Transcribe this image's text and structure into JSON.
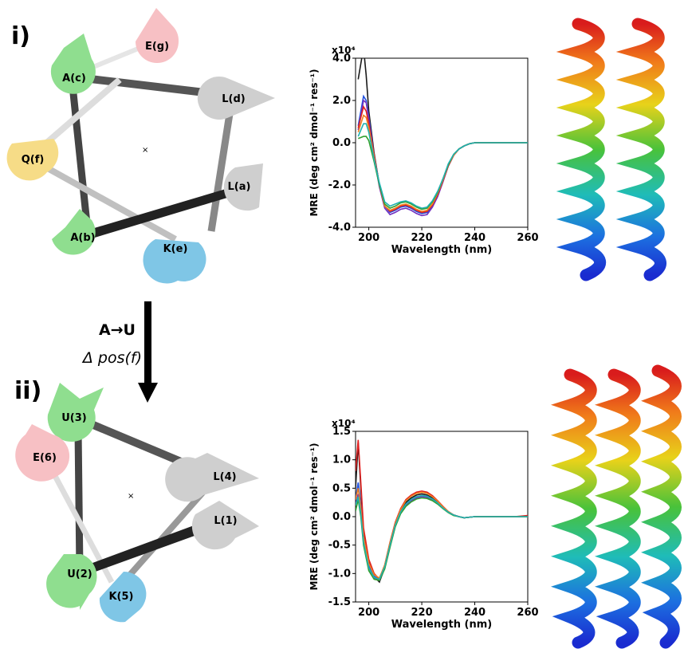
{
  "panels": {
    "i": {
      "label": "i)",
      "wheel": {
        "center_marker": "×",
        "residues": [
          {
            "id": "Ac",
            "label": "A(c)",
            "color": "#8fde8f"
          },
          {
            "id": "Eg",
            "label": "E(g)",
            "color": "#f7c0c4"
          },
          {
            "id": "Ld",
            "label": "L(d)",
            "color": "#cfcfcf"
          },
          {
            "id": "Qf",
            "label": "Q(f)",
            "color": "#f6dc87"
          },
          {
            "id": "La",
            "label": "L(a)",
            "color": "#cfcfcf"
          },
          {
            "id": "Ab",
            "label": "A(b)",
            "color": "#8fde8f"
          },
          {
            "id": "Ke",
            "label": "K(e)",
            "color": "#7fc6e6"
          }
        ]
      }
    },
    "ii": {
      "label": "ii)",
      "wheel": {
        "center_marker": "×",
        "residues": [
          {
            "id": "U3",
            "label": "U(3)",
            "color": "#8fde8f"
          },
          {
            "id": "E6",
            "label": "E(6)",
            "color": "#f7c0c4"
          },
          {
            "id": "L4",
            "label": "L(4)",
            "color": "#cfcfcf"
          },
          {
            "id": "L1",
            "label": "L(1)",
            "color": "#cfcfcf"
          },
          {
            "id": "U2",
            "label": "U(2)",
            "color": "#8fde8f"
          },
          {
            "id": "K5",
            "label": "K(5)",
            "color": "#7fc6e6"
          }
        ]
      }
    }
  },
  "transition": {
    "substitution": "A→U",
    "change": "Δ pos(f)"
  },
  "chart_data": [
    {
      "type": "line",
      "panel": "i",
      "xlabel": "Wavelength (nm)",
      "ylabel": "MRE (deg cm² dmol⁻¹ res⁻¹)",
      "multiplier": "x10⁴",
      "xlim": [
        195,
        260
      ],
      "ylim": [
        -4.0,
        4.0
      ],
      "xticks": [
        200,
        220,
        240,
        260
      ],
      "yticks": [
        {
          "v": 4.0,
          "t": "4.0"
        },
        {
          "v": 2.0,
          "t": "2.0"
        },
        {
          "v": 0.0,
          "t": "0.0"
        },
        {
          "v": -2.0,
          "t": "-2.0"
        },
        {
          "v": -4.0,
          "t": "-4.0"
        }
      ],
      "grid": false,
      "x": [
        196,
        198,
        199,
        200,
        202,
        204,
        206,
        208,
        210,
        212,
        214,
        216,
        218,
        220,
        222,
        224,
        226,
        228,
        230,
        232,
        234,
        236,
        238,
        240,
        245,
        250,
        255,
        260
      ],
      "series": [
        {
          "color": "#1a1a1a",
          "values": [
            3.0,
            4.5,
            3.2,
            1.5,
            -0.5,
            -2.0,
            -3.0,
            -3.25,
            -3.15,
            -3.0,
            -3.0,
            -3.1,
            -3.25,
            -3.35,
            -3.3,
            -3.0,
            -2.5,
            -1.8,
            -1.1,
            -0.6,
            -0.3,
            -0.15,
            -0.05,
            0.0,
            0.0,
            0.0,
            0.0,
            0.0
          ]
        },
        {
          "color": "#2050e0",
          "values": [
            0.8,
            2.2,
            2.0,
            1.2,
            -0.6,
            -2.0,
            -3.0,
            -3.3,
            -3.2,
            -3.05,
            -3.0,
            -3.1,
            -3.25,
            -3.35,
            -3.3,
            -3.0,
            -2.5,
            -1.8,
            -1.1,
            -0.6,
            -0.3,
            -0.15,
            -0.05,
            0.0,
            0.0,
            0.0,
            0.0,
            0.0
          ]
        },
        {
          "color": "#7030c0",
          "values": [
            0.6,
            2.0,
            1.9,
            1.1,
            -0.7,
            -2.1,
            -3.1,
            -3.4,
            -3.3,
            -3.15,
            -3.1,
            -3.2,
            -3.35,
            -3.45,
            -3.4,
            -3.05,
            -2.55,
            -1.85,
            -1.1,
            -0.6,
            -0.3,
            -0.15,
            -0.05,
            0.0,
            0.0,
            0.0,
            0.0,
            0.0
          ]
        },
        {
          "color": "#e02020",
          "values": [
            0.7,
            1.7,
            1.5,
            0.9,
            -0.6,
            -2.0,
            -3.0,
            -3.25,
            -3.15,
            -3.0,
            -2.95,
            -3.05,
            -3.2,
            -3.3,
            -3.25,
            -2.95,
            -2.45,
            -1.8,
            -1.1,
            -0.6,
            -0.3,
            -0.15,
            -0.05,
            0.0,
            0.0,
            0.0,
            0.0,
            0.0
          ]
        },
        {
          "color": "#f08020",
          "values": [
            0.5,
            1.3,
            1.2,
            0.7,
            -0.7,
            -2.0,
            -3.0,
            -3.2,
            -3.1,
            -2.95,
            -2.9,
            -3.0,
            -3.15,
            -3.25,
            -3.2,
            -2.9,
            -2.4,
            -1.75,
            -1.05,
            -0.6,
            -0.3,
            -0.15,
            -0.05,
            0.0,
            0.0,
            0.0,
            0.0,
            0.0
          ]
        },
        {
          "color": "#30a030",
          "values": [
            0.2,
            0.3,
            0.3,
            0.1,
            -0.9,
            -2.0,
            -2.9,
            -3.1,
            -3.0,
            -2.85,
            -2.8,
            -2.9,
            -3.05,
            -3.15,
            -3.1,
            -2.8,
            -2.35,
            -1.7,
            -1.05,
            -0.55,
            -0.3,
            -0.15,
            -0.05,
            0.0,
            0.0,
            0.0,
            0.0,
            0.0
          ]
        },
        {
          "color": "#20b0b0",
          "values": [
            0.3,
            0.9,
            0.9,
            0.5,
            -0.8,
            -1.9,
            -2.8,
            -3.0,
            -2.9,
            -2.8,
            -2.75,
            -2.85,
            -3.0,
            -3.1,
            -3.05,
            -2.75,
            -2.3,
            -1.7,
            -1.0,
            -0.55,
            -0.3,
            -0.15,
            -0.05,
            0.0,
            0.0,
            0.0,
            0.0,
            0.0
          ]
        }
      ]
    },
    {
      "type": "line",
      "panel": "ii",
      "xlabel": "Wavelength (nm)",
      "ylabel": "MRE (deg cm² dmol⁻¹ res⁻¹)",
      "multiplier": "x10⁴",
      "xlim": [
        195,
        260
      ],
      "ylim": [
        -1.5,
        1.5
      ],
      "xticks": [
        200,
        220,
        240,
        260
      ],
      "yticks": [
        {
          "v": 1.5,
          "t": "1.5"
        },
        {
          "v": 1.0,
          "t": "1.0"
        },
        {
          "v": 0.5,
          "t": "0.5"
        },
        {
          "v": 0.0,
          "t": "0.0"
        },
        {
          "v": -0.5,
          "t": "-0.5"
        },
        {
          "v": -1.0,
          "t": "-1.0"
        },
        {
          "v": -1.5,
          "t": "-1.5"
        }
      ],
      "grid": false,
      "x": [
        195,
        196,
        197,
        198,
        200,
        202,
        204,
        206,
        208,
        210,
        212,
        214,
        216,
        218,
        220,
        222,
        224,
        226,
        228,
        230,
        232,
        234,
        236,
        240,
        245,
        250,
        255,
        260
      ],
      "series": [
        {
          "color": "#1a1a1a",
          "values": [
            0.5,
            1.3,
            0.5,
            -0.3,
            -0.8,
            -1.05,
            -1.15,
            -0.9,
            -0.5,
            -0.15,
            0.1,
            0.25,
            0.33,
            0.38,
            0.4,
            0.38,
            0.33,
            0.25,
            0.16,
            0.08,
            0.03,
            0.0,
            -0.02,
            0.0,
            0.0,
            0.0,
            0.0,
            0.0
          ]
        },
        {
          "color": "#2050e0",
          "values": [
            0.3,
            0.6,
            0.2,
            -0.4,
            -0.85,
            -1.05,
            -1.1,
            -0.88,
            -0.5,
            -0.15,
            0.08,
            0.22,
            0.3,
            0.35,
            0.37,
            0.36,
            0.31,
            0.24,
            0.16,
            0.08,
            0.03,
            0.0,
            -0.02,
            0.0,
            0.0,
            0.0,
            0.0,
            0.0
          ]
        },
        {
          "color": "#7030c0",
          "values": [
            0.2,
            0.4,
            0.1,
            -0.45,
            -0.9,
            -1.08,
            -1.12,
            -0.9,
            -0.52,
            -0.17,
            0.06,
            0.2,
            0.28,
            0.33,
            0.35,
            0.34,
            0.3,
            0.23,
            0.15,
            0.08,
            0.03,
            0.0,
            -0.02,
            0.0,
            0.0,
            0.0,
            0.0,
            0.0
          ]
        },
        {
          "color": "#e02020",
          "values": [
            0.8,
            1.35,
            0.6,
            -0.2,
            -0.75,
            -1.0,
            -1.1,
            -0.85,
            -0.45,
            -0.1,
            0.14,
            0.3,
            0.38,
            0.43,
            0.45,
            0.43,
            0.37,
            0.28,
            0.18,
            0.09,
            0.03,
            0.0,
            -0.02,
            0.0,
            0.0,
            0.0,
            0.0,
            0.02
          ]
        },
        {
          "color": "#f08020",
          "values": [
            0.3,
            0.5,
            0.15,
            -0.35,
            -0.82,
            -1.02,
            -1.08,
            -0.85,
            -0.46,
            -0.12,
            0.12,
            0.28,
            0.36,
            0.41,
            0.43,
            0.41,
            0.35,
            0.27,
            0.17,
            0.09,
            0.03,
            0.0,
            -0.02,
            0.0,
            0.0,
            0.0,
            0.0,
            0.0
          ]
        },
        {
          "color": "#30a030",
          "values": [
            0.1,
            0.3,
            0.0,
            -0.5,
            -0.95,
            -1.1,
            -1.12,
            -0.92,
            -0.54,
            -0.18,
            0.05,
            0.18,
            0.26,
            0.31,
            0.33,
            0.32,
            0.28,
            0.22,
            0.14,
            0.07,
            0.02,
            0.0,
            -0.02,
            0.0,
            0.0,
            0.0,
            0.0,
            0.0
          ]
        },
        {
          "color": "#20b0b0",
          "values": [
            0.2,
            0.35,
            0.05,
            -0.45,
            -0.9,
            -1.07,
            -1.1,
            -0.88,
            -0.5,
            -0.15,
            0.08,
            0.22,
            0.3,
            0.35,
            0.37,
            0.36,
            0.31,
            0.24,
            0.15,
            0.08,
            0.03,
            0.0,
            -0.02,
            0.0,
            0.0,
            0.0,
            0.0,
            0.0
          ]
        }
      ]
    }
  ]
}
